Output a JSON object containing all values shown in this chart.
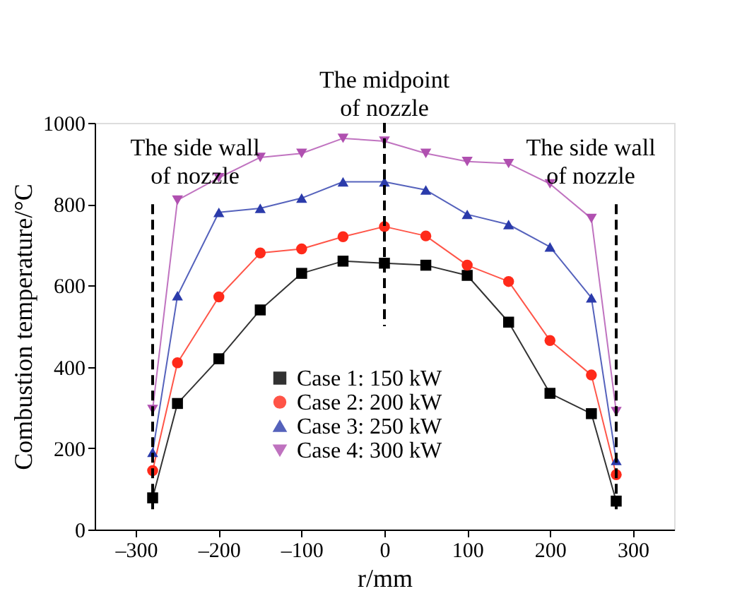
{
  "chart_data": {
    "type": "line",
    "xlabel": "r/mm",
    "ylabel": "Combustion temperature/°C",
    "x": [
      -280,
      -250,
      -200,
      -150,
      -100,
      -50,
      0,
      50,
      100,
      150,
      200,
      250,
      280
    ],
    "series": [
      {
        "name": "Case 1: 150 kW",
        "color": "#000000",
        "marker": "square",
        "values": [
          78,
          310,
          420,
          540,
          630,
          660,
          655,
          650,
          625,
          510,
          335,
          285,
          70
        ]
      },
      {
        "name": "Case 2: 200 kW",
        "color": "#ff2a1a",
        "marker": "circle",
        "values": [
          145,
          410,
          572,
          680,
          690,
          720,
          745,
          722,
          650,
          610,
          465,
          380,
          135
        ]
      },
      {
        "name": "Case 3: 250 kW",
        "color": "#2b3bab",
        "marker": "triangle",
        "values": [
          190,
          575,
          780,
          790,
          815,
          855,
          855,
          835,
          775,
          750,
          695,
          570,
          170
        ]
      },
      {
        "name": "Case 4: 300 kW",
        "color": "#b050b0",
        "marker": "triangle-down",
        "values": [
          295,
          810,
          865,
          915,
          925,
          962,
          955,
          925,
          905,
          900,
          850,
          765,
          290
        ]
      }
    ],
    "xlim": [
      -350,
      350
    ],
    "xticks": [
      {
        "value": -300,
        "label": "–300"
      },
      {
        "value": -200,
        "label": "–200"
      },
      {
        "value": -100,
        "label": "–100"
      },
      0,
      100,
      200,
      300
    ],
    "ylim": [
      0,
      1000
    ],
    "yticks": [
      0,
      200,
      400,
      600,
      800,
      1000
    ],
    "ref_lines": [
      {
        "axis": "x",
        "value": -280,
        "label": "The side wall\nof nozzle",
        "line_style": "dashed",
        "color": "#000000"
      },
      {
        "axis": "x",
        "value": 0,
        "label": "The midpoint\nof nozzle",
        "line_style": "dashed",
        "color": "#000000"
      },
      {
        "axis": "x",
        "value": 280,
        "label": "The side wall\nof nozzle",
        "line_style": "dashed",
        "color": "#000000"
      }
    ],
    "grid": false,
    "legend": "bottom"
  }
}
